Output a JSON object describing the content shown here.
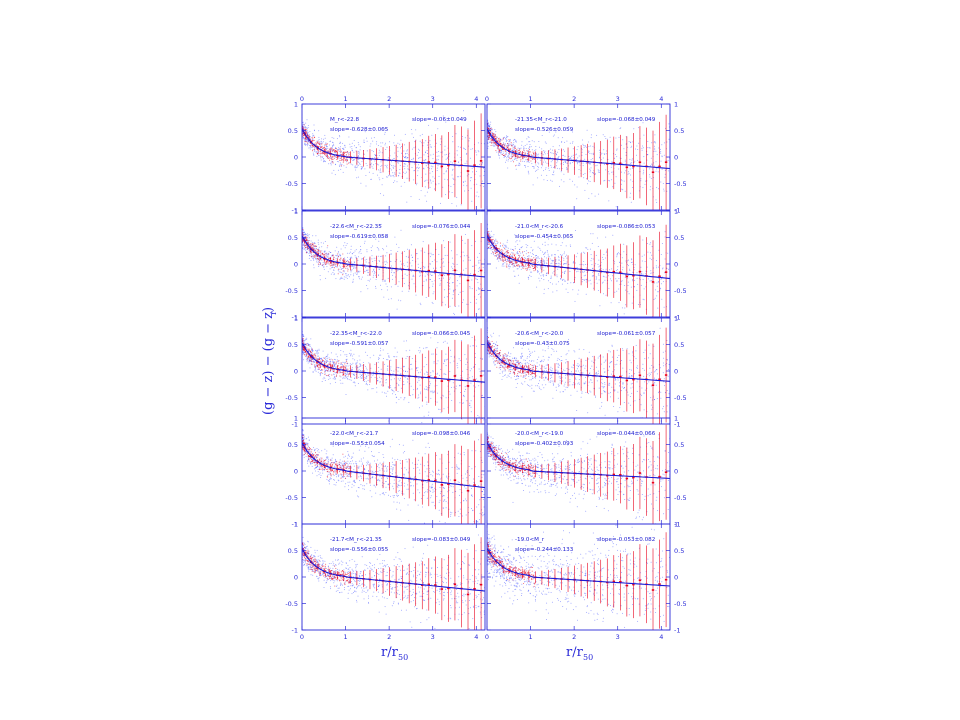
{
  "chart_data": {
    "type": "scatter",
    "grid": false,
    "xlabel": "r/r",
    "xlabel_sub": "50",
    "ylabel_parts": [
      "(g − z) − (g − z)",
      "r"
    ],
    "xlim": [
      0,
      4.2
    ],
    "ylim": [
      -1,
      1
    ],
    "xticks": [
      "0",
      "1",
      "2",
      "3",
      "4"
    ],
    "yticks": [
      "-1",
      "-0.5",
      "0",
      "0.5",
      "1"
    ],
    "colors": {
      "points": "#3b4bff",
      "profile": "#e8001c",
      "fit": "#1a1ad6",
      "frame": "#2a2ad8"
    },
    "panels": [
      {
        "label": "M_r<-22.8",
        "slope_outer": "-0.06±0.049",
        "slope_inner": "-0.628±0.065",
        "inner": -0.628,
        "outer": -0.06,
        "break_x": 1.0,
        "break_y": 0.0
      },
      {
        "label": "-21.35<M_r<-21.0",
        "slope_outer": "-0.068±0.049",
        "slope_inner": "-0.526±0.059",
        "inner": -0.526,
        "outer": -0.068,
        "break_x": 1.0,
        "break_y": 0.0
      },
      {
        "label": "-22.6<M_r<-22.35",
        "slope_outer": "-0.076±0.044",
        "slope_inner": "-0.619±0.058",
        "inner": -0.619,
        "outer": -0.076,
        "break_x": 1.0,
        "break_y": 0.0
      },
      {
        "label": "-21.0<M_r<-20.6",
        "slope_outer": "-0.086±0.053",
        "slope_inner": "-0.454±0.065",
        "inner": -0.454,
        "outer": -0.086,
        "break_x": 1.0,
        "break_y": 0.0
      },
      {
        "label": "-22.35<M_r<-22.0",
        "slope_outer": "-0.066±0.045",
        "slope_inner": "-0.591±0.057",
        "inner": -0.591,
        "outer": -0.066,
        "break_x": 1.0,
        "break_y": 0.0
      },
      {
        "label": "-20.6<M_r<-20.0",
        "slope_outer": "-0.061±0.057",
        "slope_inner": "-0.43±0.075",
        "inner": -0.43,
        "outer": -0.061,
        "break_x": 1.0,
        "break_y": 0.0
      },
      {
        "label": "-22.0<M_r<-21.7",
        "slope_outer": "-0.098±0.046",
        "slope_inner": "-0.55±0.054",
        "inner": -0.55,
        "outer": -0.098,
        "break_x": 1.0,
        "break_y": 0.0
      },
      {
        "label": "-20.0<M_r<-19.0",
        "slope_outer": "-0.044±0.066",
        "slope_inner": "-0.402±0.093",
        "inner": -0.402,
        "outer": -0.044,
        "break_x": 1.0,
        "break_y": 0.0
      },
      {
        "label": "-21.7<M_r<-21.35",
        "slope_outer": "-0.083±0.049",
        "slope_inner": "-0.556±0.055",
        "inner": -0.556,
        "outer": -0.083,
        "break_x": 1.0,
        "break_y": 0.0
      },
      {
        "label": "-19.0<M_r",
        "slope_outer": "-0.053±0.082",
        "slope_inner": "-0.244±0.133",
        "inner": -0.244,
        "outer": -0.053,
        "break_x": 1.0,
        "break_y": 0.0
      }
    ]
  }
}
